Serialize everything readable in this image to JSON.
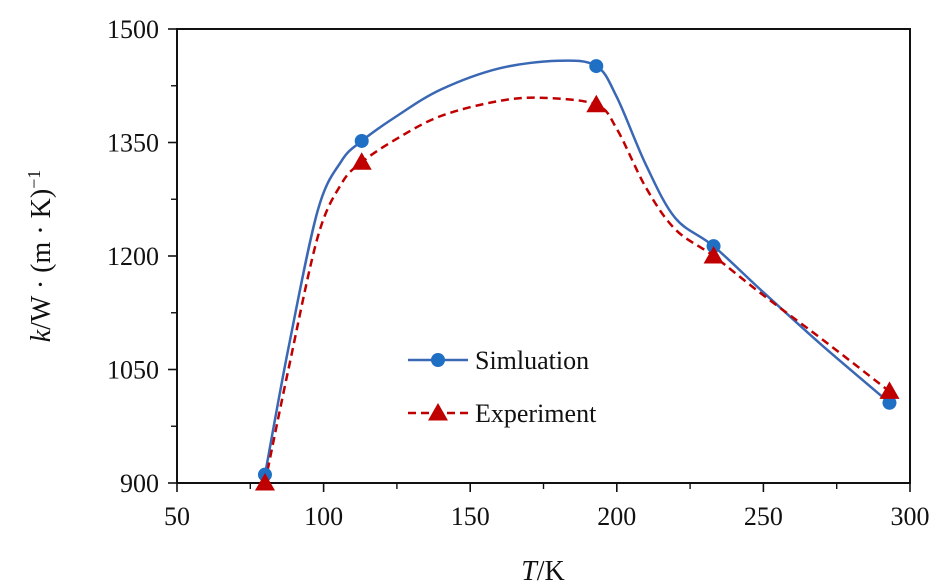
{
  "chart_data": {
    "type": "line",
    "xlabel_italic": "T",
    "xlabel_rest": "/K",
    "ylabel_italic": "k",
    "ylabel_rest": "/W · (m · K)",
    "ylabel_sup": "−1",
    "xlim": [
      50,
      300
    ],
    "ylim": [
      900,
      1500
    ],
    "x_ticks": [
      50,
      100,
      150,
      200,
      250,
      300
    ],
    "x_minor_ticks": [
      75,
      125,
      175,
      225,
      275
    ],
    "y_ticks": [
      900,
      1050,
      1200,
      1350,
      1500
    ],
    "y_minor_ticks": [
      975,
      1125,
      1275,
      1425
    ],
    "grid": false,
    "legend_position": "center",
    "series": [
      {
        "name": "Simluation",
        "color": "#3a68b4",
        "marker": "circle",
        "line_style": "solid",
        "x": [
          80,
          113,
          193,
          233,
          293
        ],
        "y": [
          911,
          1352,
          1451,
          1213,
          1006
        ],
        "curve_x": [
          80,
          88,
          98,
          106,
          113,
          125,
          140,
          160,
          180,
          193,
          200,
          210,
          220,
          233,
          250,
          270,
          293
        ],
        "curve_y": [
          911,
          1078,
          1260,
          1325,
          1352,
          1385,
          1420,
          1448,
          1458,
          1451,
          1410,
          1320,
          1250,
          1213,
          1152,
          1082,
          1006
        ]
      },
      {
        "name": "Experiment",
        "color": "#c00000",
        "marker": "triangle",
        "line_style": "dashed",
        "x": [
          80,
          113,
          193,
          233,
          293
        ],
        "y": [
          900,
          1324,
          1400,
          1200,
          1021
        ],
        "curve_x": [
          80,
          88,
          98,
          106,
          113,
          125,
          140,
          160,
          175,
          193,
          200,
          210,
          220,
          233,
          250,
          270,
          293
        ],
        "curve_y": [
          900,
          1050,
          1225,
          1295,
          1324,
          1355,
          1385,
          1405,
          1409,
          1400,
          1368,
          1290,
          1235,
          1200,
          1148,
          1090,
          1021
        ]
      }
    ]
  }
}
